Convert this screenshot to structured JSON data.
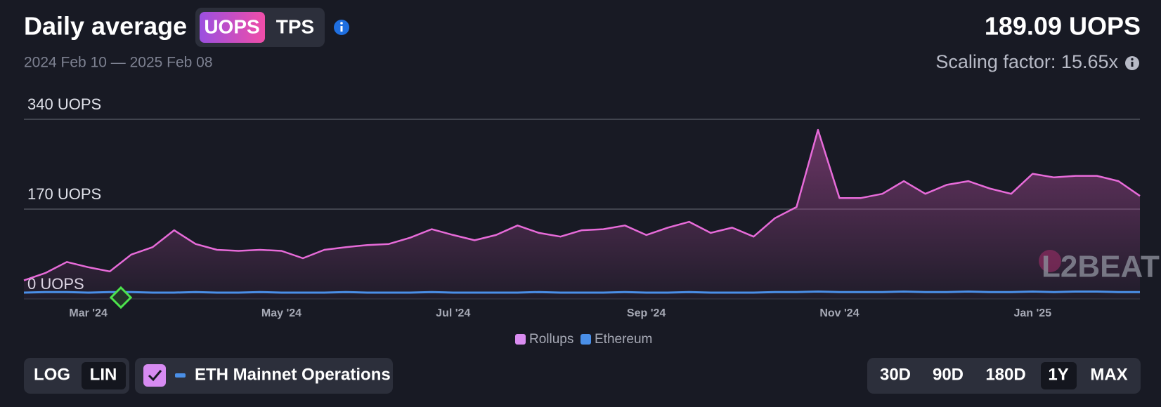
{
  "header": {
    "title": "Daily average",
    "toggle": [
      "UOPS",
      "TPS"
    ],
    "range": "2024 Feb 10 — 2025 Feb 08",
    "current": "189.09 UOPS",
    "scaling": "Scaling factor: 15.65x"
  },
  "watermark": "L2BEAT",
  "controls": {
    "scale": [
      "LOG",
      "LIN"
    ],
    "checkbox": "ETH Mainnet Operations",
    "periods": [
      "30D",
      "90D",
      "180D",
      "1Y",
      "MAX"
    ]
  },
  "chart_data": {
    "type": "line",
    "categories": [
      null,
      null,
      null,
      "Mar '24",
      null,
      null,
      null,
      null,
      null,
      null,
      null,
      null,
      "May '24",
      null,
      null,
      null,
      null,
      null,
      null,
      null,
      "Jul '24",
      null,
      null,
      null,
      null,
      null,
      null,
      null,
      null,
      "Sep '24",
      null,
      null,
      null,
      null,
      null,
      null,
      null,
      null,
      "Nov '24",
      null,
      null,
      null,
      null,
      null,
      null,
      null,
      null,
      "Jan '25",
      null,
      null,
      null,
      null,
      null
    ],
    "series": [
      {
        "name": "Rollups",
        "color": "#e76bd9",
        "values": [
          35,
          49,
          70,
          60,
          52,
          84,
          98,
          130,
          104,
          93,
          91,
          93,
          91,
          77,
          93,
          98,
          102,
          104,
          116,
          132,
          121,
          111,
          121,
          139,
          125,
          118,
          130,
          132,
          139,
          121,
          135,
          146,
          125,
          135,
          118,
          153,
          174,
          320,
          191,
          191,
          199,
          223,
          199,
          216,
          223,
          209,
          199,
          237,
          230,
          233,
          233,
          223,
          195
        ]
      },
      {
        "name": "Ethereum",
        "color": "#4a8fe7",
        "values": [
          12,
          13,
          13,
          12,
          13,
          13,
          12,
          12,
          13,
          12,
          12,
          13,
          12,
          12,
          12,
          13,
          12,
          12,
          12,
          13,
          12,
          12,
          12,
          12,
          13,
          12,
          12,
          12,
          13,
          12,
          12,
          13,
          12,
          12,
          12,
          13,
          13,
          14,
          13,
          13,
          13,
          14,
          13,
          13,
          14,
          13,
          13,
          14,
          13,
          14,
          14,
          13,
          13
        ]
      }
    ],
    "ylim": [
      0,
      340
    ],
    "yticks": [
      {
        "value": 0,
        "label": "0 UOPS"
      },
      {
        "value": 170,
        "label": "170 UOPS"
      },
      {
        "value": 340,
        "label": "340 UOPS"
      }
    ],
    "grid": true,
    "legend": "bottom"
  }
}
